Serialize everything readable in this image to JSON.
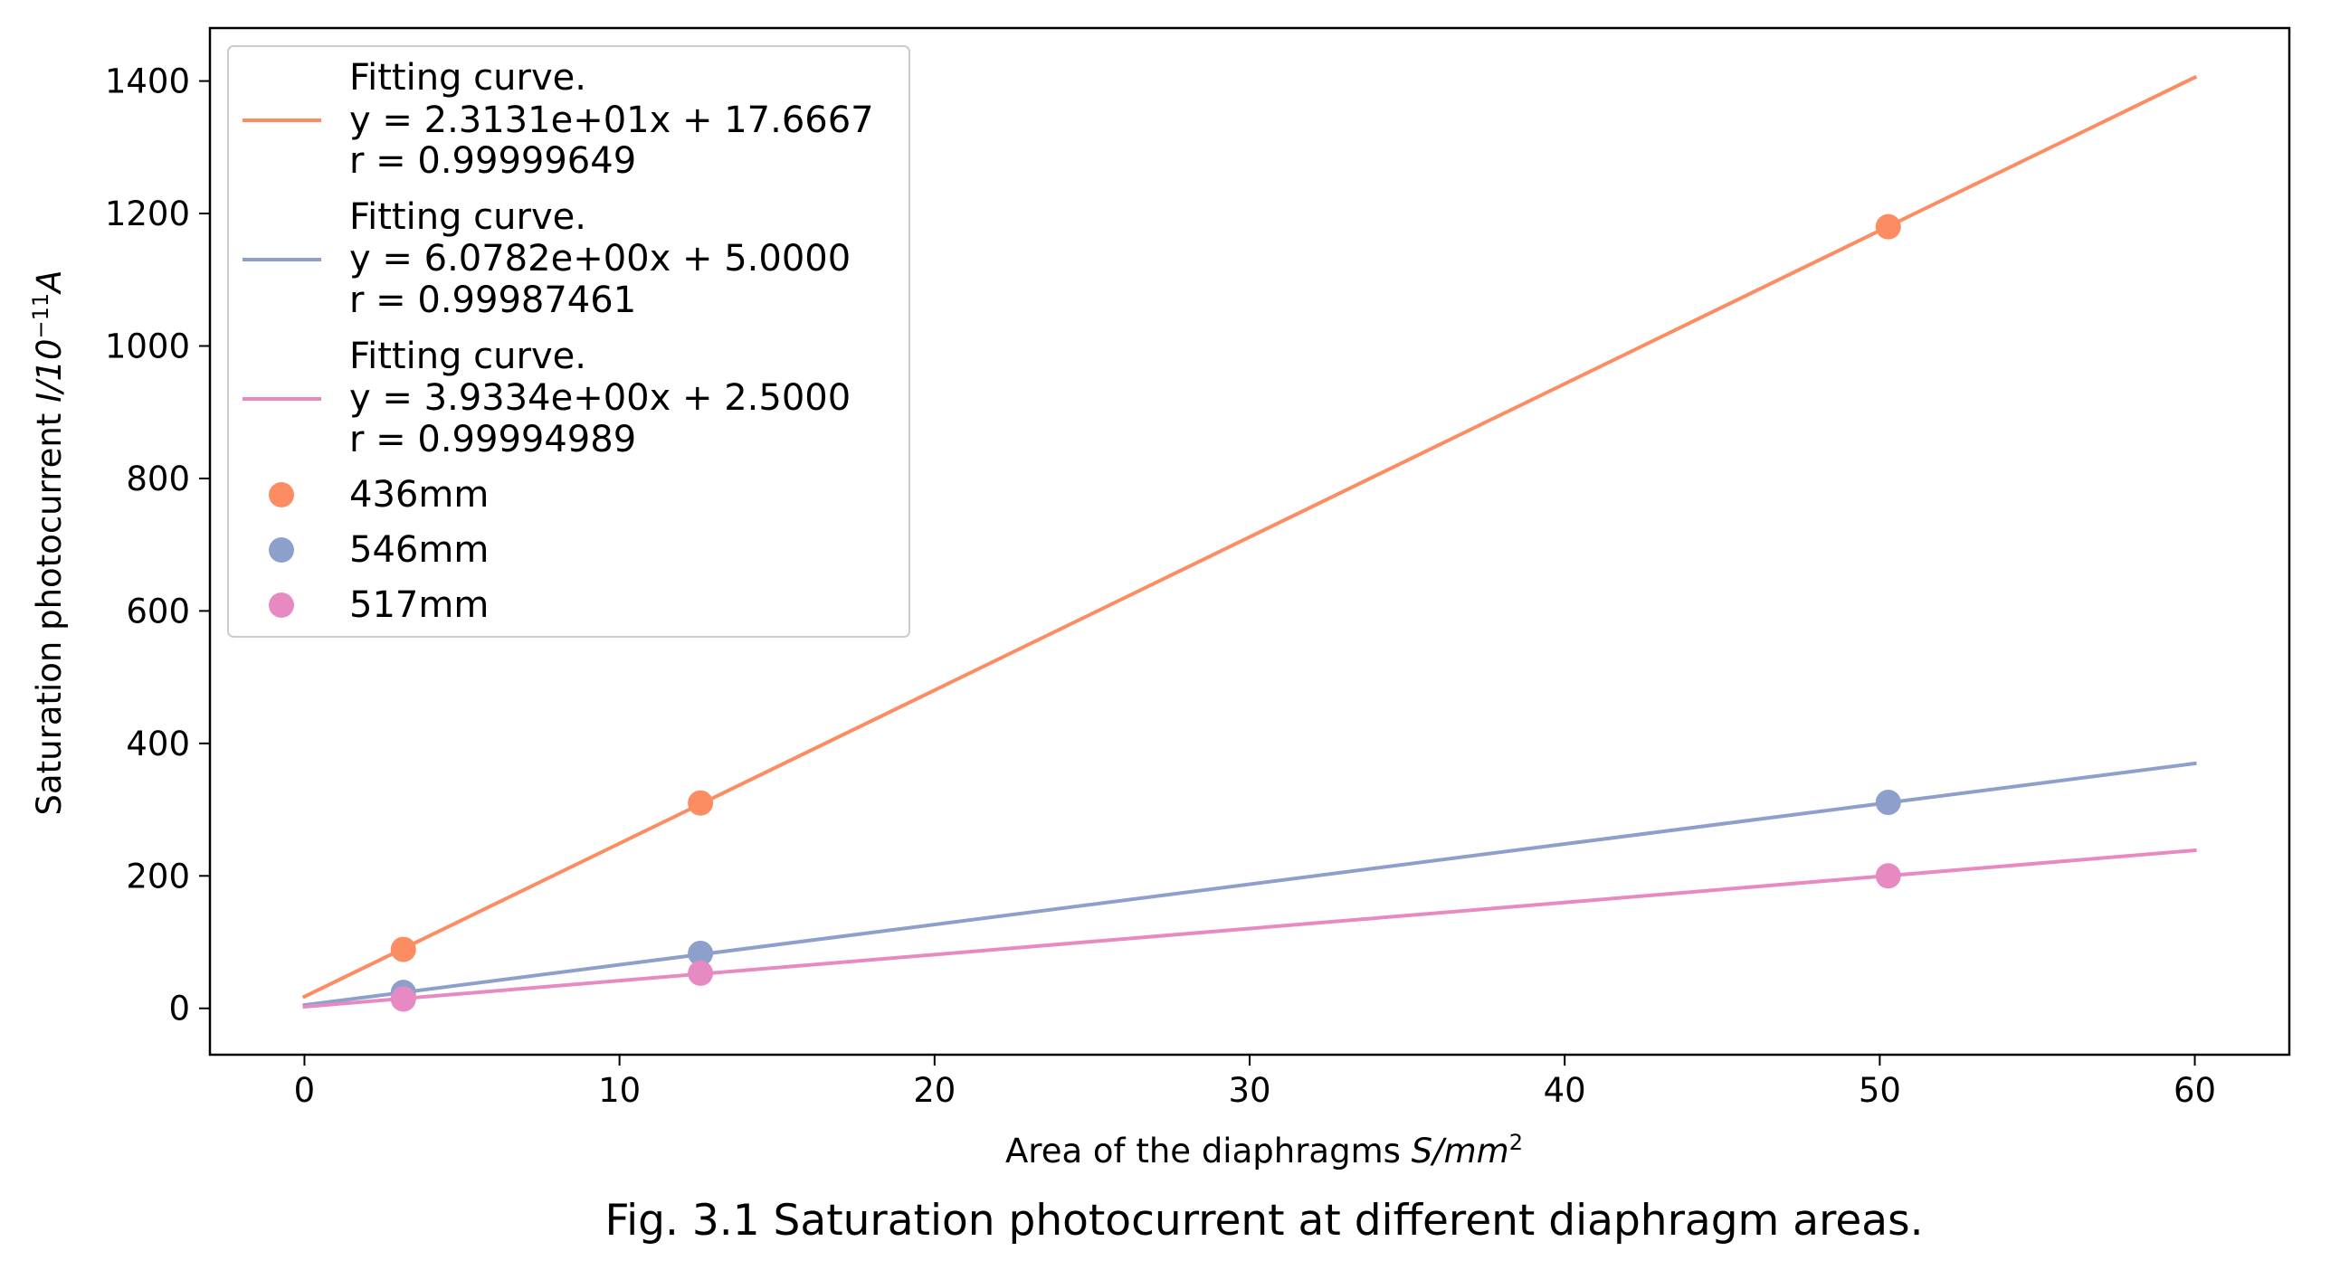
{
  "chart_data": {
    "type": "scatter",
    "xlabel": {
      "text": "Area of the diaphragms ",
      "math": "S/mm",
      "sup": "2"
    },
    "ylabel": {
      "text": "Saturation photocurrent ",
      "math": "I/10",
      "sup": "−11",
      "unit": "A"
    },
    "caption": "Fig. 3.1 Saturation photocurrent at different diaphragm areas.",
    "xlim": [
      -3,
      63
    ],
    "ylim": [
      -70,
      1480
    ],
    "xticks": [
      0,
      10,
      20,
      30,
      40,
      50,
      60
    ],
    "yticks": [
      0,
      200,
      400,
      600,
      800,
      1000,
      1200,
      1400
    ],
    "grid": false,
    "legend_position": "upper-left",
    "fits": [
      {
        "label_lines": [
          "Fitting curve.",
          "y = 2.3131e+01x + 17.6667",
          "r = 0.99999649"
        ],
        "slope": 23.131,
        "intercept": 17.6667,
        "x_range": [
          0,
          60
        ],
        "color": "#fc8d62"
      },
      {
        "label_lines": [
          "Fitting curve.",
          "y = 6.0782e+00x + 5.0000",
          "r = 0.99987461"
        ],
        "slope": 6.0782,
        "intercept": 5.0,
        "x_range": [
          0,
          60
        ],
        "color": "#8da0cb"
      },
      {
        "label_lines": [
          "Fitting curve.",
          "y = 3.9334e+00x + 2.5000",
          "r = 0.99994989"
        ],
        "slope": 3.9334,
        "intercept": 2.5,
        "x_range": [
          0,
          60
        ],
        "color": "#e78ac3"
      }
    ],
    "series": [
      {
        "name": "436mm",
        "color": "#fc8d62",
        "x": [
          3.14,
          12.57,
          50.27
        ],
        "y": [
          89,
          310,
          1180
        ]
      },
      {
        "name": "546mm",
        "color": "#8da0cb",
        "x": [
          3.14,
          12.57,
          50.27
        ],
        "y": [
          24,
          83,
          311
        ]
      },
      {
        "name": "517mm",
        "color": "#e78ac3",
        "x": [
          3.14,
          12.57,
          50.27
        ],
        "y": [
          14,
          53,
          200
        ]
      }
    ]
  }
}
